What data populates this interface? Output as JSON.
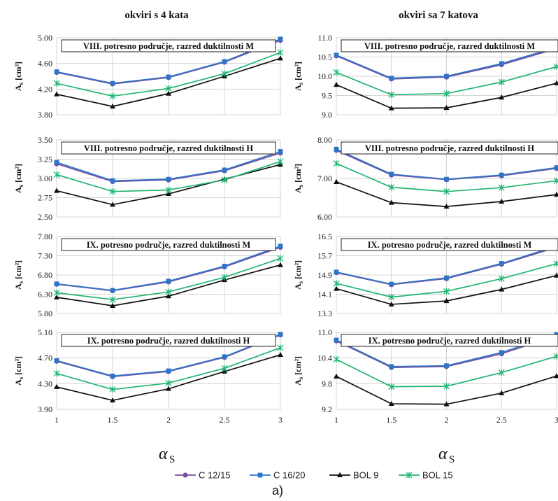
{
  "series_styles": [
    {
      "name": "C 12/15",
      "color": "#7a4fa0",
      "marker": "circle"
    },
    {
      "name": "C 16/20",
      "color": "#2e74c8",
      "marker": "square"
    },
    {
      "name": "BOL 9",
      "color": "#111111",
      "marker": "triangle"
    },
    {
      "name": "BOL 15",
      "color": "#22b573",
      "marker": "star"
    }
  ],
  "figure": {
    "col_titles": [
      "okviri s 4 kata",
      "okviri sa 7 katova"
    ],
    "xlabel_symbol": "α",
    "xlabel_sub": "S",
    "ylabel_main": "A",
    "ylabel_sub": "s",
    "ylabel_unit": " [cm²]",
    "caption": "a)"
  },
  "chart_data": [
    {
      "type": "line",
      "title": "VIII. potresno područje, razred duktilnosti M",
      "x": [
        1,
        1.5,
        2,
        2.5,
        3
      ],
      "xlim": [
        1,
        3
      ],
      "ylim": [
        3.8,
        5.0
      ],
      "yticks": [
        "3.80",
        "4.20",
        "4.60",
        "5.00"
      ],
      "xticks": [
        "1",
        "1.5",
        "2",
        "2.5",
        "3"
      ],
      "series": [
        {
          "name": "C 12/15",
          "values": [
            4.46,
            4.28,
            4.38,
            4.62,
            4.96
          ]
        },
        {
          "name": "C 16/20",
          "values": [
            4.47,
            4.29,
            4.39,
            4.63,
            4.98
          ]
        },
        {
          "name": "BOL 9",
          "values": [
            4.12,
            3.93,
            4.13,
            4.4,
            4.68
          ]
        },
        {
          "name": "BOL 15",
          "values": [
            4.29,
            4.09,
            4.21,
            4.44,
            4.77
          ]
        }
      ]
    },
    {
      "type": "line",
      "title": "VIII. potresno područje, razred duktilnosti M",
      "x": [
        1,
        1.5,
        2,
        2.5,
        3
      ],
      "xlim": [
        1,
        3
      ],
      "ylim": [
        9.0,
        11.0
      ],
      "yticks": [
        "9.0",
        "9.5",
        "10.0",
        "10.5",
        "11.0"
      ],
      "xticks": [
        "1",
        "1.5",
        "2",
        "2.5",
        "3"
      ],
      "series": [
        {
          "name": "C 12/15",
          "values": [
            10.53,
            9.93,
            9.98,
            10.3,
            10.72
          ]
        },
        {
          "name": "C 16/20",
          "values": [
            10.55,
            9.95,
            10.0,
            10.33,
            10.75
          ]
        },
        {
          "name": "BOL 9",
          "values": [
            9.78,
            9.17,
            9.18,
            9.45,
            9.82
          ]
        },
        {
          "name": "BOL 15",
          "values": [
            10.1,
            9.52,
            9.55,
            9.85,
            10.25
          ]
        }
      ]
    },
    {
      "type": "line",
      "title": "VIII. potresno područje, razred duktilnosti H",
      "x": [
        1,
        1.5,
        2,
        2.5,
        3
      ],
      "xlim": [
        1,
        3
      ],
      "ylim": [
        2.5,
        3.5
      ],
      "yticks": [
        "2.50",
        "2.75",
        "3.00",
        "3.25",
        "3.50"
      ],
      "xticks": [
        "1",
        "1.5",
        "2",
        "2.5",
        "3"
      ],
      "series": [
        {
          "name": "C 12/15",
          "values": [
            3.19,
            2.96,
            2.98,
            3.1,
            3.33
          ]
        },
        {
          "name": "C 16/20",
          "values": [
            3.21,
            2.97,
            2.99,
            3.11,
            3.35
          ]
        },
        {
          "name": "BOL 9",
          "values": [
            2.84,
            2.66,
            2.8,
            2.99,
            3.18
          ]
        },
        {
          "name": "BOL 15",
          "values": [
            3.05,
            2.83,
            2.85,
            2.98,
            3.22
          ]
        }
      ]
    },
    {
      "type": "line",
      "title": "VIII. potresno područje, razred duktilnosti H",
      "x": [
        1,
        1.5,
        2,
        2.5,
        3
      ],
      "xlim": [
        1,
        3
      ],
      "ylim": [
        6.0,
        8.0
      ],
      "yticks": [
        "6.00",
        "7.00",
        "8.00"
      ],
      "xticks": [
        "1",
        "1.5",
        "2",
        "2.5",
        "3"
      ],
      "series": [
        {
          "name": "C 12/15",
          "values": [
            7.73,
            7.09,
            6.97,
            7.07,
            7.26
          ]
        },
        {
          "name": "C 16/20",
          "values": [
            7.76,
            7.11,
            6.98,
            7.09,
            7.28
          ]
        },
        {
          "name": "BOL 9",
          "values": [
            6.91,
            6.37,
            6.27,
            6.4,
            6.58
          ]
        },
        {
          "name": "BOL 15",
          "values": [
            7.39,
            6.77,
            6.66,
            6.76,
            6.94
          ]
        }
      ]
    },
    {
      "type": "line",
      "title": "IX. potresno područje, razred duktilnosti M",
      "x": [
        1,
        1.5,
        2,
        2.5,
        3
      ],
      "xlim": [
        1,
        3
      ],
      "ylim": [
        5.8,
        7.8
      ],
      "yticks": [
        "5.80",
        "6.30",
        "6.80",
        "7.30",
        "7.80"
      ],
      "xticks": [
        "1",
        "1.5",
        "2",
        "2.5",
        "3"
      ],
      "series": [
        {
          "name": "C 12/15",
          "values": [
            6.56,
            6.39,
            6.62,
            7.01,
            7.52
          ]
        },
        {
          "name": "C 16/20",
          "values": [
            6.57,
            6.4,
            6.64,
            7.03,
            7.55
          ]
        },
        {
          "name": "BOL 9",
          "values": [
            6.22,
            6.0,
            6.25,
            6.67,
            7.06
          ]
        },
        {
          "name": "BOL 15",
          "values": [
            6.34,
            6.16,
            6.36,
            6.74,
            7.23
          ]
        }
      ]
    },
    {
      "type": "line",
      "title": "IX. potresno područje, razred duktilnosti M",
      "x": [
        1,
        1.5,
        2,
        2.5,
        3
      ],
      "xlim": [
        1,
        3
      ],
      "ylim": [
        13.3,
        16.5
      ],
      "yticks": [
        "13.3",
        "14.1",
        "14.9",
        "15.7",
        "16.5"
      ],
      "xticks": [
        "1",
        "1.5",
        "2",
        "2.5",
        "3"
      ],
      "series": [
        {
          "name": "C 12/15",
          "values": [
            15.0,
            14.5,
            14.75,
            15.35,
            16.05
          ]
        },
        {
          "name": "C 16/20",
          "values": [
            15.02,
            14.52,
            14.78,
            15.38,
            16.1
          ]
        },
        {
          "name": "BOL 9",
          "values": [
            14.33,
            13.68,
            13.82,
            14.3,
            14.88
          ]
        },
        {
          "name": "BOL 15",
          "values": [
            14.55,
            13.98,
            14.22,
            14.75,
            15.37
          ]
        }
      ]
    },
    {
      "type": "line",
      "title": "IX. potresno područje, razred duktilnosti H",
      "x": [
        1,
        1.5,
        2,
        2.5,
        3
      ],
      "xlim": [
        1,
        3
      ],
      "ylim": [
        3.9,
        5.1
      ],
      "yticks": [
        "3.90",
        "4.30",
        "4.70",
        "5.10"
      ],
      "xticks": [
        "1",
        "1.5",
        "2",
        "2.5",
        "3"
      ],
      "series": [
        {
          "name": "C 12/15",
          "values": [
            4.65,
            4.41,
            4.49,
            4.71,
            5.06
          ]
        },
        {
          "name": "C 16/20",
          "values": [
            4.66,
            4.42,
            4.5,
            4.72,
            5.07
          ]
        },
        {
          "name": "BOL 9",
          "values": [
            4.25,
            4.04,
            4.22,
            4.49,
            4.75
          ]
        },
        {
          "name": "BOL 15",
          "values": [
            4.46,
            4.21,
            4.31,
            4.54,
            4.86
          ]
        }
      ]
    },
    {
      "type": "line",
      "title": "IX. potresno područje, razred duktilnosti H",
      "x": [
        1,
        1.5,
        2,
        2.5,
        3
      ],
      "xlim": [
        1,
        3
      ],
      "ylim": [
        9.2,
        11.0
      ],
      "yticks": [
        "9.2",
        "9.8",
        "10.4",
        "11.0"
      ],
      "xticks": [
        "1",
        "1.5",
        "2",
        "2.5",
        "3"
      ],
      "series": [
        {
          "name": "C 12/15",
          "values": [
            10.8,
            10.18,
            10.2,
            10.5,
            10.92
          ]
        },
        {
          "name": "C 16/20",
          "values": [
            10.82,
            10.2,
            10.22,
            10.53,
            10.95
          ]
        },
        {
          "name": "BOL 9",
          "values": [
            9.97,
            9.33,
            9.32,
            9.58,
            9.98
          ]
        },
        {
          "name": "BOL 15",
          "values": [
            10.37,
            9.73,
            9.74,
            10.06,
            10.44
          ]
        }
      ]
    }
  ]
}
